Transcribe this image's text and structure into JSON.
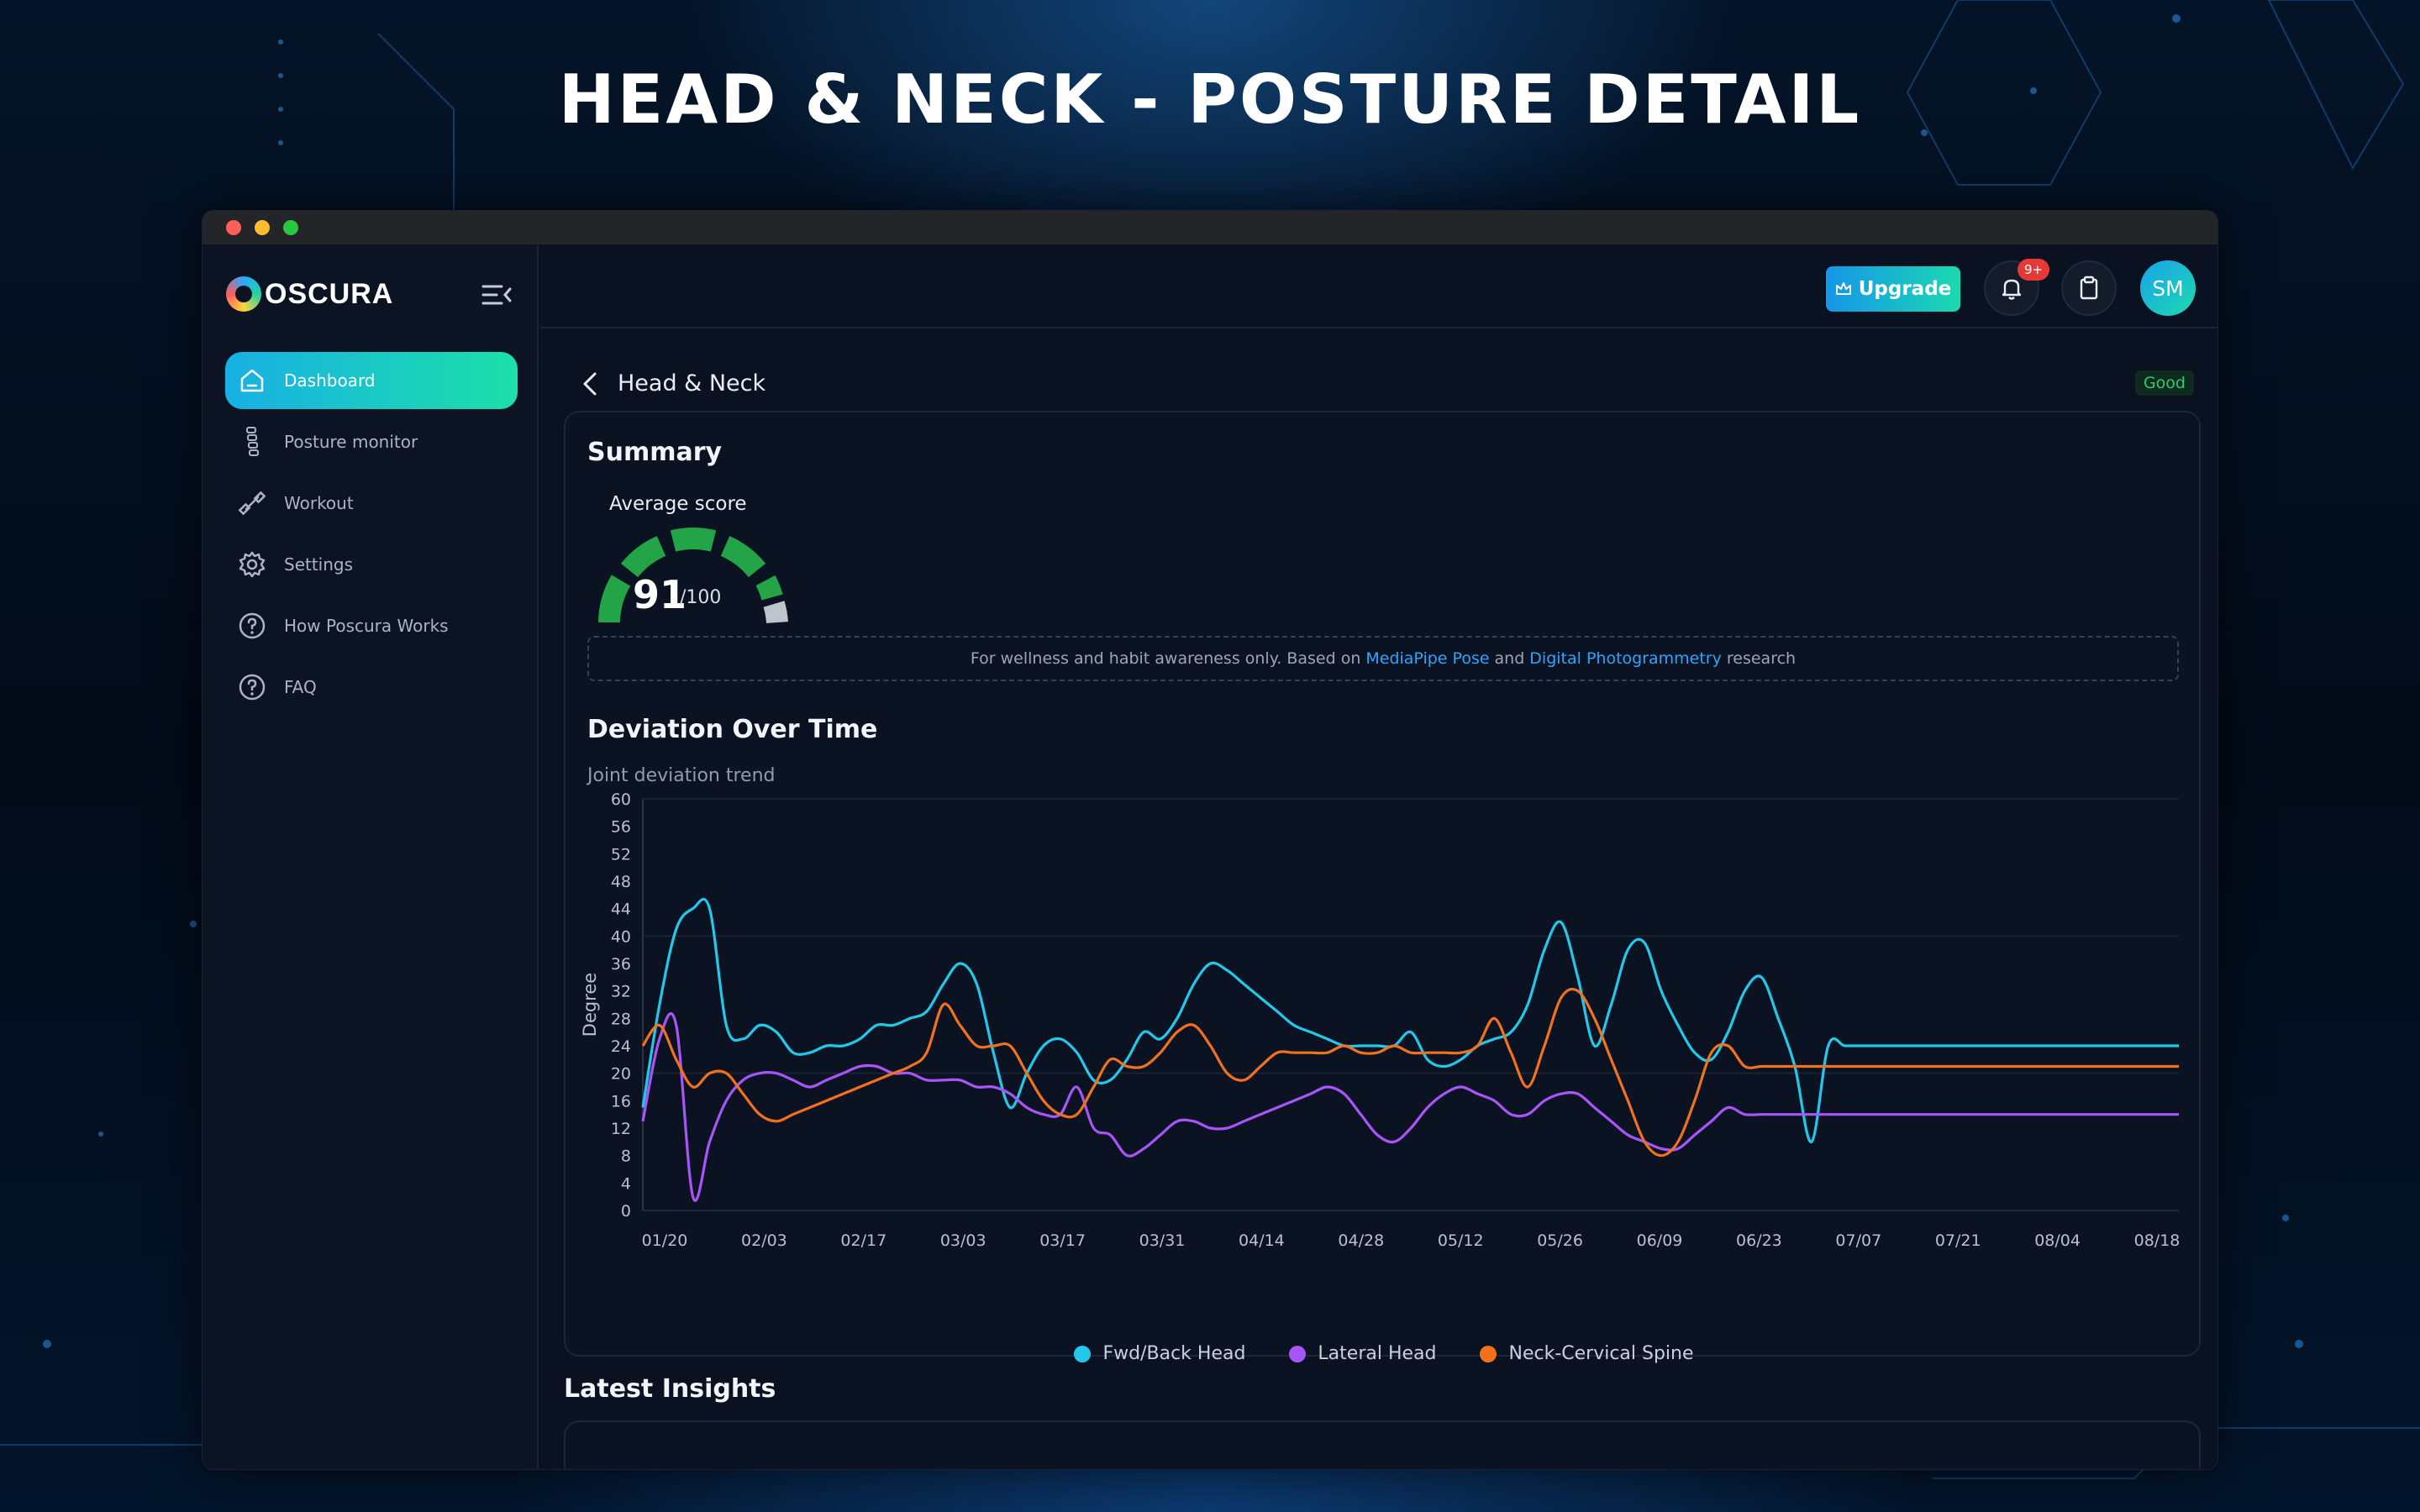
{
  "poster": {
    "title": "HEAD & NECK - POSTURE DETAIL"
  },
  "brand": {
    "name": "OSCURA"
  },
  "sidebar": {
    "items": [
      {
        "label": "Dashboard",
        "icon": "home-icon",
        "active": true
      },
      {
        "label": "Posture monitor",
        "icon": "spine-icon",
        "active": false
      },
      {
        "label": "Workout",
        "icon": "dumbbell-icon",
        "active": false
      },
      {
        "label": "Settings",
        "icon": "gear-icon",
        "active": false
      },
      {
        "label": "How Poscura Works",
        "icon": "help-circle-icon",
        "active": false
      },
      {
        "label": "FAQ",
        "icon": "help-circle-icon",
        "active": false
      }
    ]
  },
  "topbar": {
    "upgrade_label": "Upgrade",
    "notification_badge": "9+",
    "avatar_initials": "SM"
  },
  "page": {
    "title": "Head & Neck",
    "status": "Good"
  },
  "summary": {
    "title": "Summary",
    "average_label": "Average score",
    "score": "91",
    "score_max": "/100",
    "score_value": 91,
    "disclaimer_prefix": "For wellness and habit awareness only. Based on",
    "link1": "MediaPipe Pose",
    "disclaimer_and": "and",
    "link2": "Digital Photogrammetry",
    "disclaimer_suffix": "research"
  },
  "chart_section": {
    "title": "Deviation Over Time",
    "subtitle": "Joint deviation trend"
  },
  "chart_data": {
    "type": "line",
    "ylabel": "Degree",
    "xlabel": "",
    "ylim": [
      0,
      60
    ],
    "yticks": [
      0,
      4,
      8,
      12,
      16,
      20,
      24,
      28,
      32,
      36,
      40,
      44,
      48,
      52,
      56,
      60
    ],
    "x_tick_labels": [
      "01/20",
      "02/03",
      "02/17",
      "03/03",
      "03/17",
      "03/31",
      "04/14",
      "04/28",
      "05/12",
      "05/26",
      "06/09",
      "06/23",
      "07/07",
      "07/21",
      "08/04",
      "08/18"
    ],
    "x": [
      0,
      2,
      4,
      6,
      8,
      10,
      12,
      14,
      16,
      18,
      20,
      22,
      24,
      26,
      28,
      30,
      32,
      34,
      36,
      38,
      40,
      42,
      44,
      46,
      48,
      50,
      52,
      54,
      56,
      58,
      60,
      62,
      64,
      66,
      68,
      70,
      72,
      74,
      76,
      78,
      80,
      82,
      84,
      86,
      88,
      90,
      92,
      94,
      96,
      98,
      100,
      102,
      104,
      106,
      108,
      110,
      112,
      114,
      116,
      118,
      120,
      122,
      124,
      126,
      128,
      130,
      132,
      134,
      136,
      138,
      140,
      142,
      144,
      146,
      148,
      150,
      152,
      154,
      156,
      158,
      160,
      162,
      164,
      166,
      168,
      170,
      172,
      174,
      176,
      178,
      180,
      182,
      184,
      186,
      188,
      190,
      192,
      194,
      196,
      198,
      200,
      202,
      204,
      206,
      208,
      210
    ],
    "series": [
      {
        "name": "Fwd/Back Head",
        "color": "#22c8ea",
        "values": [
          15,
          30,
          41,
          44,
          44,
          27,
          25,
          27,
          26,
          23,
          23,
          24,
          24,
          25,
          27,
          27,
          28,
          29,
          33,
          36,
          33,
          23,
          15,
          20,
          24,
          25,
          23,
          19,
          19,
          22,
          26,
          25,
          28,
          33,
          36,
          35,
          33,
          31,
          29,
          27,
          26,
          25,
          24,
          24,
          24,
          24,
          26,
          22,
          21,
          22,
          24,
          25,
          26,
          30,
          38,
          42,
          34,
          24,
          30,
          38,
          39,
          32,
          27,
          23,
          22,
          26,
          32,
          34,
          28,
          21,
          10,
          24,
          24,
          24,
          24,
          24,
          24,
          24,
          24,
          24,
          24,
          24,
          24,
          24,
          24,
          24,
          24,
          24,
          24,
          24,
          24,
          24,
          24,
          24,
          24,
          24,
          24,
          24,
          24,
          24,
          24,
          24,
          24,
          24,
          24,
          24
        ]
      },
      {
        "name": "Lateral Head",
        "color": "#a855f7",
        "values": [
          13,
          25,
          27,
          2,
          10,
          16,
          19,
          20,
          20,
          19,
          18,
          19,
          20,
          21,
          21,
          20,
          20,
          19,
          19,
          19,
          18,
          18,
          17,
          15,
          14,
          14,
          18,
          12,
          11,
          8,
          9,
          11,
          13,
          13,
          12,
          12,
          13,
          14,
          15,
          16,
          17,
          18,
          17,
          14,
          11,
          10,
          12,
          15,
          17,
          18,
          17,
          16,
          14,
          14,
          16,
          17,
          17,
          15,
          13,
          11,
          10,
          9,
          9,
          11,
          13,
          15,
          14,
          14,
          14,
          14,
          14,
          14,
          14,
          14,
          14,
          14,
          14,
          14,
          14,
          14,
          14,
          14,
          14,
          14,
          14,
          14,
          14,
          14,
          14,
          14,
          14,
          14,
          14,
          14,
          14,
          14,
          14,
          14,
          14,
          14,
          14,
          14,
          14,
          14,
          14,
          14
        ]
      },
      {
        "name": "Neck-Cervical Spine",
        "color": "#f2711c",
        "values": [
          24,
          27,
          22,
          18,
          20,
          20,
          17,
          14,
          13,
          14,
          15,
          16,
          17,
          18,
          19,
          20,
          21,
          23,
          30,
          27,
          24,
          24,
          24,
          20,
          16,
          14,
          14,
          18,
          22,
          21,
          21,
          23,
          26,
          27,
          24,
          20,
          19,
          21,
          23,
          23,
          23,
          23,
          24,
          23,
          23,
          24,
          23,
          23,
          23,
          23,
          24,
          28,
          23,
          18,
          24,
          31,
          32,
          28,
          22,
          16,
          10,
          8,
          10,
          16,
          23,
          24,
          21,
          21,
          21,
          21,
          21,
          21,
          21,
          21,
          21,
          21,
          21,
          21,
          21,
          21,
          21,
          21,
          21,
          21,
          21,
          21,
          21,
          21,
          21,
          21,
          21,
          21,
          21,
          21,
          21,
          21,
          21,
          21,
          21,
          21,
          21,
          21,
          21,
          21,
          21,
          21
        ]
      }
    ],
    "grid": true,
    "legend_position": "bottom"
  },
  "insights": {
    "title": "Latest Insights"
  },
  "colors": {
    "accent_start": "#18b0e4",
    "accent_end": "#1ce0a8",
    "good": "#2ecc71",
    "link": "#2ba6ff"
  }
}
